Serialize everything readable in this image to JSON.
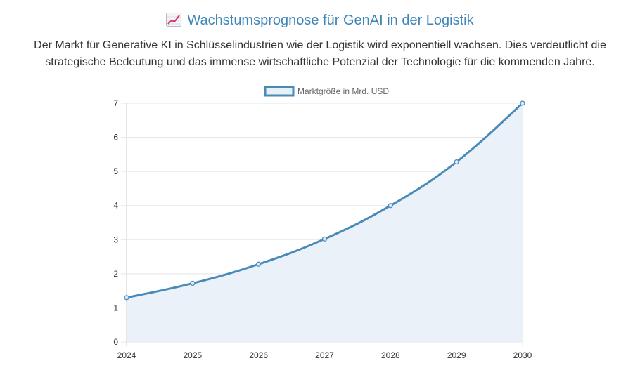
{
  "header": {
    "title": "Wachstumsprognose für GenAI in der Logistik",
    "title_icon": "chart-increasing-icon",
    "description": "Der Markt für Generative KI in Schlüsselindustrien wie der Logistik wird exponentiell wachsen. Dies verdeutlicht die strategische Bedeutung und das immense wirtschaftliche Potenzial der Technologie für die kommenden Jahre."
  },
  "colors": {
    "accent": "#3f86b8",
    "line": "#4a8ab8",
    "fill": "#e8f0f7",
    "grid": "#e5e5e5",
    "text": "#333333"
  },
  "chart_data": {
    "type": "line",
    "title": "",
    "xlabel": "",
    "ylabel": "",
    "categories": [
      "2024",
      "2025",
      "2026",
      "2027",
      "2028",
      "2029",
      "2030"
    ],
    "series": [
      {
        "name": "Marktgröße in Mrd. USD",
        "values": [
          1.3,
          1.72,
          2.28,
          3.02,
          4.0,
          5.28,
          7.0
        ],
        "fill": true
      }
    ],
    "ylim": [
      0,
      7
    ],
    "yticks": [
      0,
      1,
      2,
      3,
      4,
      5,
      6,
      7
    ],
    "grid": true,
    "legend": "top-center"
  }
}
